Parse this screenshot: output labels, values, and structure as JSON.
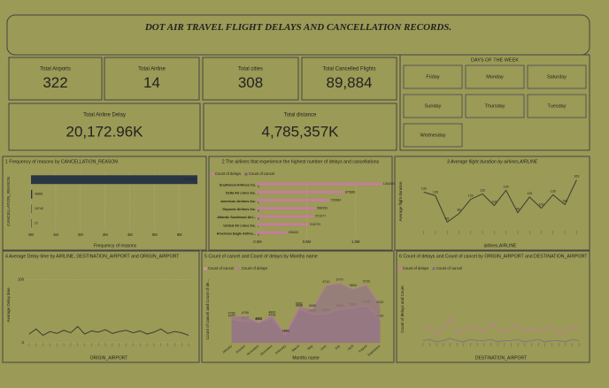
{
  "title": {
    "bold": "DOT AIR TRAVEL",
    "rest": " FLIGHT DELAYS AND CANCELLATION RECORDS."
  },
  "kpis": [
    {
      "label": "Total Airports",
      "value": "322"
    },
    {
      "label": "Total Airline",
      "value": "14"
    },
    {
      "label": "Total cities",
      "value": "308"
    },
    {
      "label": "Total Cancelled Flights",
      "value": "89,884"
    },
    {
      "label": "Total Airline Delay",
      "value": "20,172.96K"
    },
    {
      "label": "Total distance",
      "value": "4,785,357K"
    }
  ],
  "days": {
    "title": "DAYS OF THE WEEK",
    "items": [
      "Friday",
      "Monday",
      "Saturday",
      "Sunday",
      "Thursday",
      "Tuesday",
      "Wednesday"
    ]
  },
  "chart_data": [
    {
      "type": "hbar",
      "title": "1 Frequency of reasons by CANCELLATION_REASON",
      "x_label": "Frequency of reasons",
      "y_label": "CANCELLATION_REASON",
      "categories": [
        null,
        null,
        null,
        null
      ],
      "series": [
        {
          "name": null,
          "color": "#2b3645",
          "values": [
            6729196,
            48851,
            15749,
            22
          ]
        }
      ],
      "xlim": [
        0,
        6800000
      ],
      "xticks": [
        {
          "value": 0,
          "label": "0M"
        },
        {
          "value": 1000000,
          "label": "1M"
        },
        {
          "value": 2000000,
          "label": "2M"
        },
        {
          "value": 3000000,
          "label": "3M"
        },
        {
          "value": 4000000,
          "label": "4M"
        },
        {
          "value": 5000000,
          "label": "5M"
        },
        {
          "value": 6000000,
          "label": "6M"
        }
      ]
    },
    {
      "type": "hbar",
      "title": "2 The airlines that experience the highest number of delays and cancellations",
      "categories": [
        "Southwest Airlines Co.",
        "Delta Air Lines Inc.",
        "American Airlines Inc.",
        "Skywest Airlines Inc.",
        "Atlantic Southeast Airl...",
        "United Air Lines Inc.",
        "American Eagle Airline..."
      ],
      "series": [
        {
          "name": "Count of delays",
          "color": "#c97aa6",
          "values": [
            1261855,
            875881,
            725984,
            588353,
            571977,
            515723,
            294632
          ]
        },
        {
          "name": "Count of cancel",
          "color": "#7d5f7d",
          "values": [
            16043,
            3824,
            10919,
            15712,
            15231,
            6573,
            15025
          ]
        }
      ],
      "xlim": [
        0,
        1300000
      ],
      "xticks": [
        {
          "value": 0,
          "label": "0.0M"
        },
        {
          "value": 500000,
          "label": "0.5M"
        },
        {
          "value": 1000000,
          "label": "1.0M"
        }
      ]
    },
    {
      "type": "line",
      "title": "3 Average flight duration by airlines,AIRLINE",
      "x_label": "airlines,AIRLINE",
      "y_label": "Average flight duration",
      "categories": [
        null,
        null,
        null,
        null,
        null,
        null,
        null,
        null,
        null,
        null,
        null,
        null,
        null,
        null
      ],
      "series": [
        {
          "name": null,
          "color": "#333333",
          "values": [
            136,
            128,
            69,
            88,
            120,
            132,
            106,
            140,
            90,
            125,
            100,
            130,
            108,
            163
          ]
        }
      ],
      "ylim": [
        50,
        180
      ],
      "value_labels": true
    },
    {
      "type": "line",
      "title": "4 Average Delay time by AIRLINE, DESTINATION_AIRPORT and ORIGIN_AIRPORT",
      "x_label": "ORIGIN_AIRPORT",
      "y_label": "Average Delay time",
      "categories": [
        null,
        null,
        null,
        null,
        null,
        null,
        null,
        null,
        null,
        null,
        null,
        null,
        null,
        null,
        null,
        null,
        null,
        null,
        null,
        null,
        null,
        null,
        null,
        null
      ],
      "series": [
        {
          "name": null,
          "color": "#333333",
          "values": [
            14,
            22,
            12,
            18,
            15,
            20,
            16,
            26,
            14,
            19,
            17,
            21,
            15,
            18,
            20,
            16,
            19,
            14,
            17,
            22,
            15,
            18,
            16,
            12
          ]
        }
      ],
      "ylim": [
        0,
        120
      ],
      "yticks": [
        0,
        100
      ]
    },
    {
      "type": "area",
      "title": "5 Count of cancel and Count of delays by Months name",
      "x_label": "Months name",
      "y_label": "Count of cancel and Count of de...",
      "categories": [
        "January",
        "October",
        "November",
        "December",
        "February",
        "March",
        "May",
        "June",
        "July",
        "April",
        "August",
        "September"
      ],
      "series": [
        {
          "name": "Count of cancel",
          "color": "#e58ab9",
          "values": [
            4700,
            4640,
            4620,
            4726,
            4238,
            4998,
            4850,
            4870,
            5000,
            5040,
            5120,
            4700
          ]
        },
        {
          "name": "Count of delays",
          "color": "#b579a3",
          "values": [
            4780,
            4790,
            4600,
            4800,
            4250,
            5062,
            5000,
            5710,
            5770,
            5600,
            5720,
            5110
          ]
        }
      ],
      "ylim": [
        4000,
        6000
      ],
      "value_labels": true
    },
    {
      "type": "line",
      "title": "6 Count of delays and Count of cancel by ORIGIN_AIRPORT and DESTINATION_AIRPORT",
      "x_label": "DESTINATION_AIRPORT",
      "y_label": "Count of delays and Count",
      "categories": [
        null,
        null,
        null,
        null,
        null,
        null,
        null,
        null,
        null,
        null,
        null,
        null,
        null,
        null,
        null,
        null,
        null,
        null,
        null,
        null,
        null,
        null,
        null,
        null
      ],
      "series": [
        {
          "name": "Count of delays",
          "color": "#c97aa6",
          "values": [
            10,
            14,
            8,
            12,
            22,
            9,
            11,
            15,
            13,
            10,
            18,
            12,
            9,
            14,
            16,
            11,
            13,
            10,
            12,
            15,
            9,
            11,
            14,
            12
          ]
        },
        {
          "name": "Count of cancel",
          "color": "#8a6a8a",
          "values": [
            2,
            3,
            1,
            2,
            4,
            2,
            1,
            3,
            2,
            2,
            3,
            1,
            2,
            2,
            3,
            1,
            2,
            3,
            1,
            2,
            2,
            1,
            3,
            2
          ]
        }
      ],
      "ylim": [
        0,
        60
      ]
    }
  ]
}
